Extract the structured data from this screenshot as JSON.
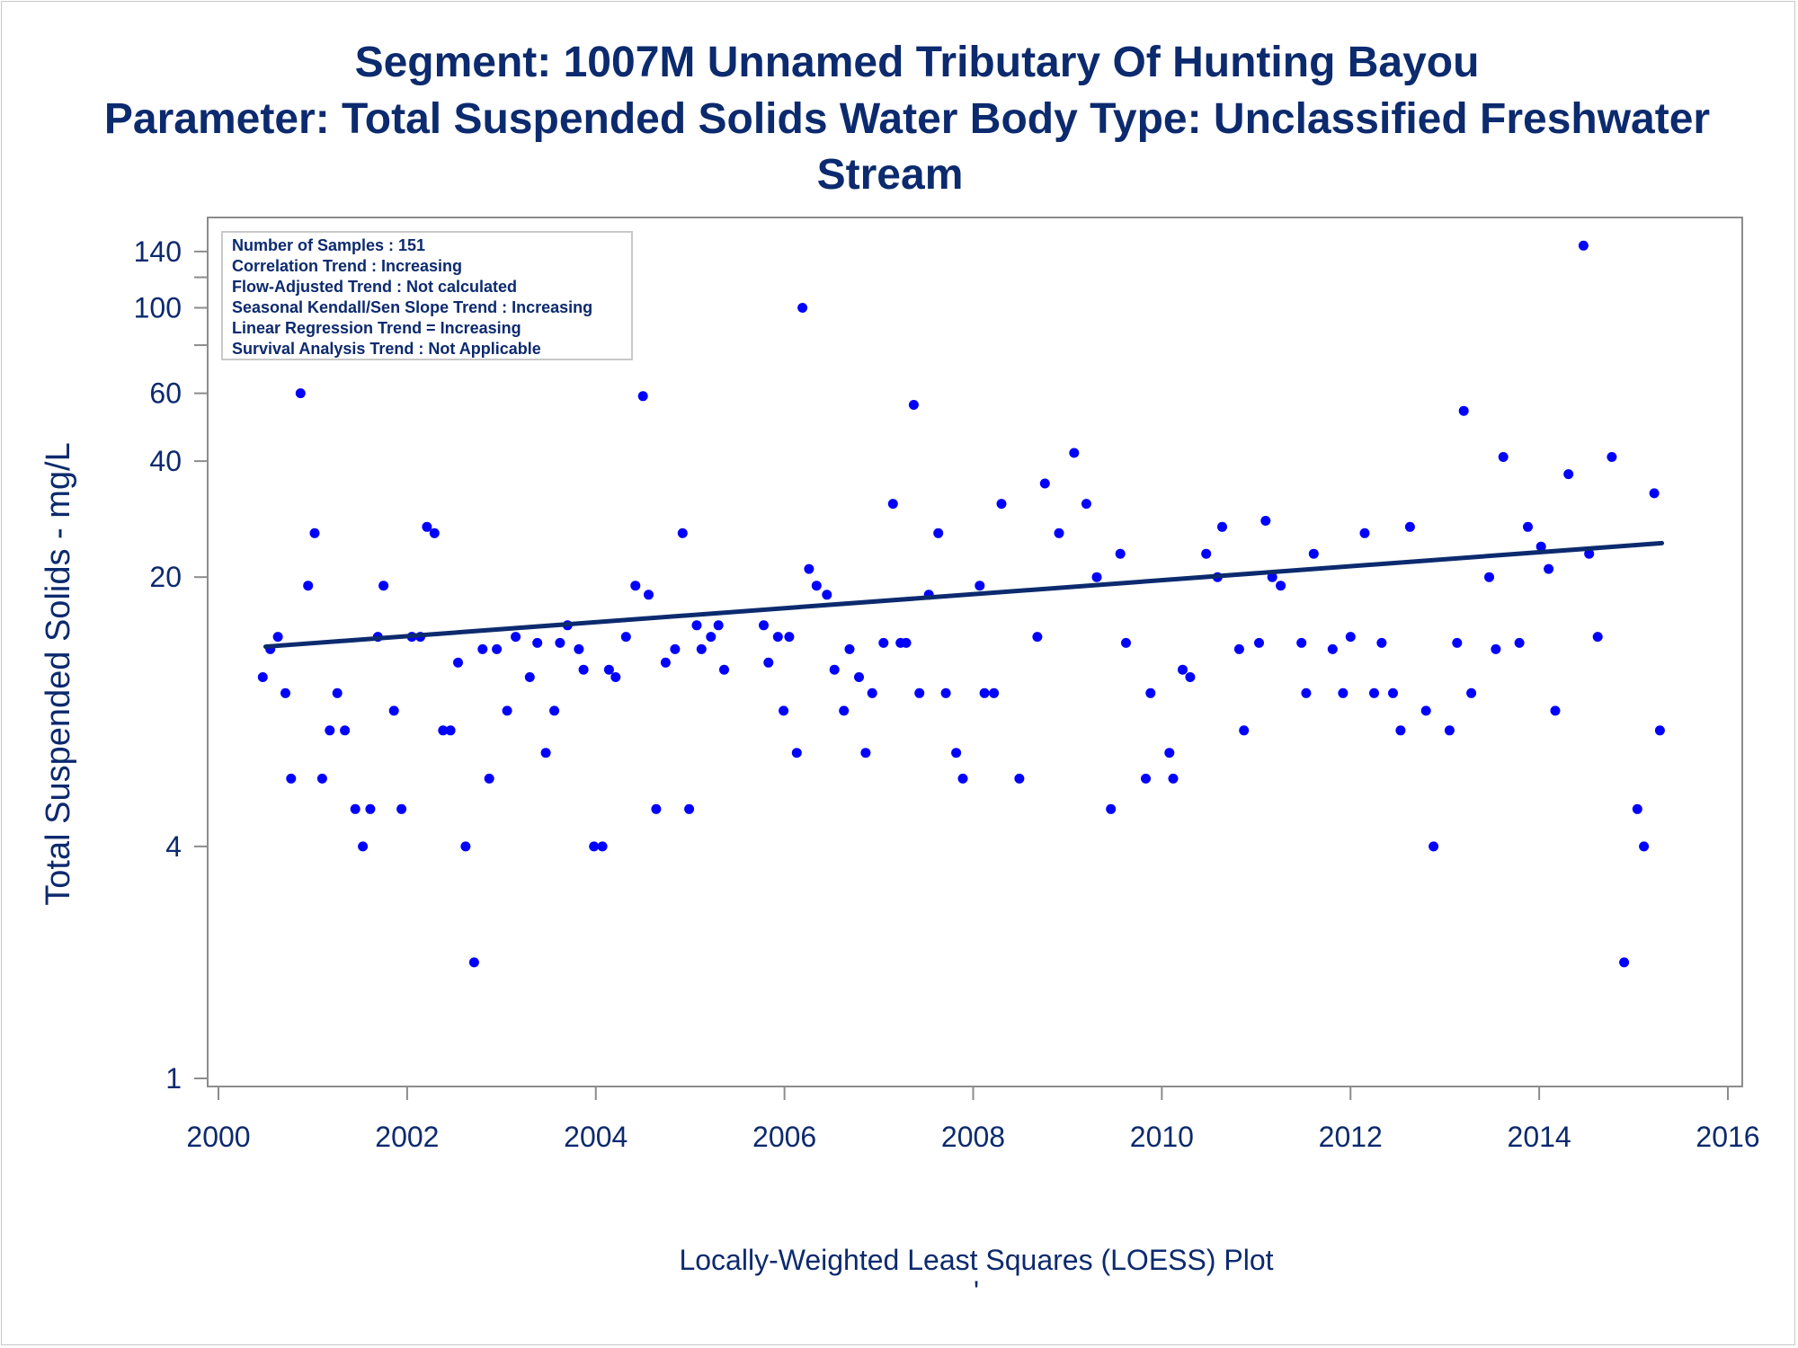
{
  "colors": {
    "text": "#0c2a6e",
    "points": "#0000ff",
    "trend": "#0c2a6e",
    "axis": "#8c8c8c"
  },
  "titles": {
    "line1": "Segment: 1007M  Unnamed Tributary Of Hunting Bayou",
    "line2": "Parameter: Total Suspended Solids   Water Body Type: Unclassified Freshwater",
    "line3": "Stream"
  },
  "footer": {
    "caption": "Locally-Weighted Least Squares (LOESS) Plot",
    "mark": "'"
  },
  "chart_data": {
    "type": "scatter",
    "title": "",
    "xlabel": "",
    "ylabel": "Total Suspended Solids - mg/L",
    "yscale": "log",
    "xlim": [
      2000,
      2016
    ],
    "ylim": [
      1,
      160
    ],
    "x_ticks": [
      2000,
      2002,
      2004,
      2006,
      2008,
      2010,
      2012,
      2014,
      2016
    ],
    "y_labeled_ticks": [
      1,
      4,
      20,
      40,
      60,
      100,
      140
    ],
    "y_minor_ticks": [
      120,
      80
    ],
    "annotations": [
      "Number of Samples : 151",
      "Correlation Trend : Increasing",
      "Flow-Adjusted Trend : Not calculated",
      "Seasonal Kendall/Sen Slope Trend : Increasing",
      "Linear Regression Trend = Increasing",
      "Survival Analysis Trend : Not Applicable"
    ],
    "trend_line": {
      "x": [
        2000.5,
        2015.3
      ],
      "y": [
        13.2,
        24.5
      ]
    },
    "points": [
      [
        2000.47,
        11
      ],
      [
        2000.55,
        13
      ],
      [
        2000.63,
        14
      ],
      [
        2000.71,
        10
      ],
      [
        2000.77,
        6
      ],
      [
        2000.87,
        60
      ],
      [
        2000.95,
        19
      ],
      [
        2001.02,
        26
      ],
      [
        2001.1,
        6
      ],
      [
        2001.18,
        8
      ],
      [
        2001.26,
        10
      ],
      [
        2001.34,
        8
      ],
      [
        2001.45,
        5
      ],
      [
        2001.53,
        4
      ],
      [
        2001.61,
        5
      ],
      [
        2001.69,
        14
      ],
      [
        2001.75,
        19
      ],
      [
        2001.86,
        9
      ],
      [
        2001.94,
        5
      ],
      [
        2002.05,
        14
      ],
      [
        2002.14,
        14
      ],
      [
        2002.21,
        27
      ],
      [
        2002.29,
        26
      ],
      [
        2002.38,
        8
      ],
      [
        2002.46,
        8
      ],
      [
        2002.54,
        12
      ],
      [
        2002.62,
        4
      ],
      [
        2002.71,
        2
      ],
      [
        2002.8,
        13
      ],
      [
        2002.87,
        6
      ],
      [
        2002.95,
        13
      ],
      [
        2003.06,
        9
      ],
      [
        2003.15,
        14
      ],
      [
        2003.3,
        11
      ],
      [
        2003.38,
        13.5
      ],
      [
        2003.47,
        7
      ],
      [
        2003.56,
        9
      ],
      [
        2003.62,
        13.5
      ],
      [
        2003.7,
        15
      ],
      [
        2003.82,
        13
      ],
      [
        2003.87,
        11.5
      ],
      [
        2003.98,
        4
      ],
      [
        2004.07,
        4
      ],
      [
        2004.14,
        11.5
      ],
      [
        2004.21,
        11
      ],
      [
        2004.32,
        14
      ],
      [
        2004.42,
        19
      ],
      [
        2004.5,
        59
      ],
      [
        2004.56,
        18
      ],
      [
        2004.64,
        5
      ],
      [
        2004.74,
        12
      ],
      [
        2004.84,
        13
      ],
      [
        2004.92,
        26
      ],
      [
        2004.99,
        5
      ],
      [
        2005.07,
        15
      ],
      [
        2005.12,
        13
      ],
      [
        2005.22,
        14
      ],
      [
        2005.3,
        15
      ],
      [
        2005.36,
        11.5
      ],
      [
        2005.78,
        15
      ],
      [
        2005.83,
        12
      ],
      [
        2005.93,
        14
      ],
      [
        2005.99,
        9
      ],
      [
        2006.05,
        14
      ],
      [
        2006.13,
        7
      ],
      [
        2006.19,
        100
      ],
      [
        2006.26,
        21
      ],
      [
        2006.34,
        19
      ],
      [
        2006.45,
        18
      ],
      [
        2006.53,
        11.5
      ],
      [
        2006.63,
        9
      ],
      [
        2006.69,
        13
      ],
      [
        2006.79,
        11
      ],
      [
        2006.86,
        7
      ],
      [
        2006.93,
        10
      ],
      [
        2007.05,
        13.5
      ],
      [
        2007.15,
        31
      ],
      [
        2007.23,
        13.5
      ],
      [
        2007.29,
        13.5
      ],
      [
        2007.37,
        56
      ],
      [
        2007.43,
        10
      ],
      [
        2007.53,
        18
      ],
      [
        2007.63,
        26
      ],
      [
        2007.71,
        10
      ],
      [
        2007.82,
        7
      ],
      [
        2007.89,
        6
      ],
      [
        2008.07,
        19
      ],
      [
        2008.12,
        10
      ],
      [
        2008.22,
        10
      ],
      [
        2008.3,
        31
      ],
      [
        2008.49,
        6
      ],
      [
        2008.68,
        14
      ],
      [
        2008.76,
        35
      ],
      [
        2008.91,
        26
      ],
      [
        2009.07,
        42
      ],
      [
        2009.2,
        31
      ],
      [
        2009.31,
        20
      ],
      [
        2009.46,
        5
      ],
      [
        2009.56,
        23
      ],
      [
        2009.62,
        13.5
      ],
      [
        2009.83,
        6
      ],
      [
        2009.88,
        10
      ],
      [
        2010.08,
        7
      ],
      [
        2010.12,
        6
      ],
      [
        2010.22,
        11.5
      ],
      [
        2010.3,
        11
      ],
      [
        2010.47,
        23
      ],
      [
        2010.59,
        20
      ],
      [
        2010.64,
        27
      ],
      [
        2010.82,
        13
      ],
      [
        2010.87,
        8
      ],
      [
        2011.03,
        13.5
      ],
      [
        2011.1,
        28
      ],
      [
        2011.17,
        20
      ],
      [
        2011.26,
        19
      ],
      [
        2011.48,
        13.5
      ],
      [
        2011.53,
        10
      ],
      [
        2011.61,
        23
      ],
      [
        2011.81,
        13
      ],
      [
        2011.92,
        10
      ],
      [
        2012.0,
        14
      ],
      [
        2012.15,
        26
      ],
      [
        2012.25,
        10
      ],
      [
        2012.33,
        13.5
      ],
      [
        2012.45,
        10
      ],
      [
        2012.53,
        8
      ],
      [
        2012.63,
        27
      ],
      [
        2012.8,
        9
      ],
      [
        2012.88,
        4
      ],
      [
        2013.05,
        8
      ],
      [
        2013.13,
        13.5
      ],
      [
        2013.2,
        54
      ],
      [
        2013.28,
        10
      ],
      [
        2013.47,
        20
      ],
      [
        2013.54,
        13
      ],
      [
        2013.62,
        41
      ],
      [
        2013.79,
        13.5
      ],
      [
        2013.88,
        27
      ],
      [
        2014.02,
        24
      ],
      [
        2014.1,
        21
      ],
      [
        2014.17,
        9
      ],
      [
        2014.31,
        37
      ],
      [
        2014.47,
        145
      ],
      [
        2014.53,
        23
      ],
      [
        2014.62,
        14
      ],
      [
        2014.77,
        41
      ],
      [
        2014.9,
        2
      ],
      [
        2015.04,
        5
      ],
      [
        2015.11,
        4
      ],
      [
        2015.22,
        33
      ],
      [
        2015.28,
        8
      ]
    ]
  }
}
